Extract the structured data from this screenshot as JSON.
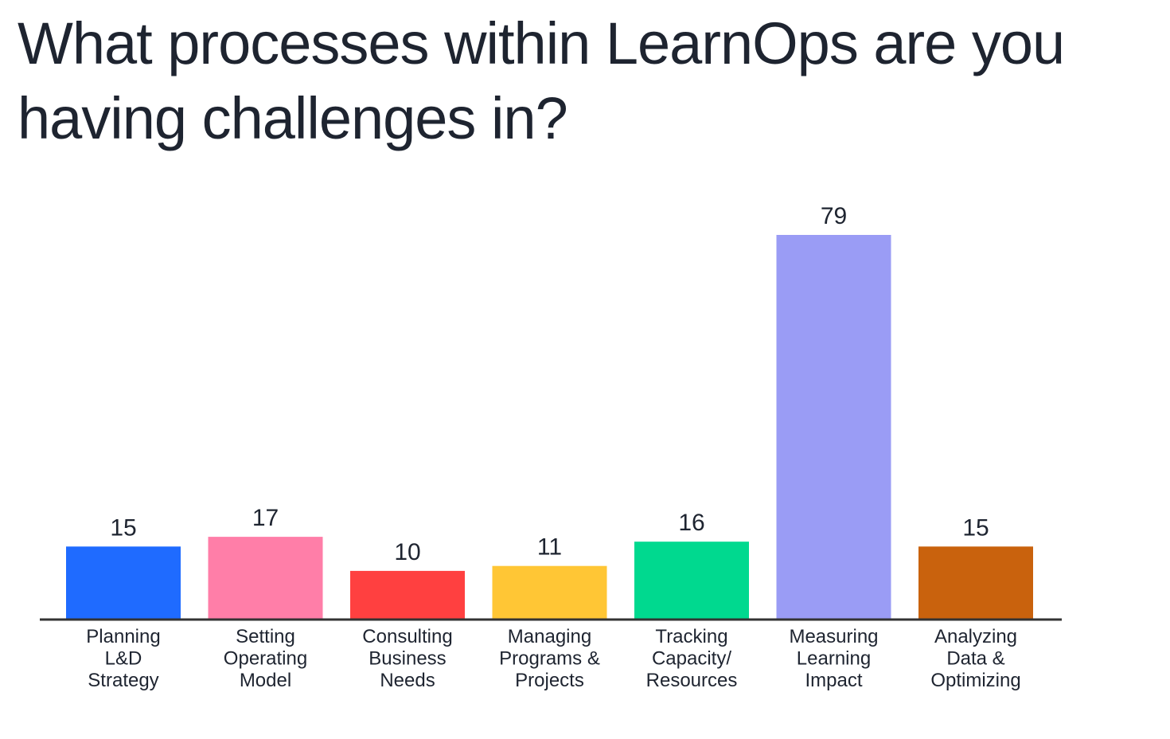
{
  "chart_data": {
    "type": "bar",
    "title": "What processes within LearnOps are you having challenges in?",
    "categories": [
      [
        "Planning",
        "L&D",
        "Strategy"
      ],
      [
        "Setting",
        "Operating",
        "Model"
      ],
      [
        "Consulting",
        "Business",
        "Needs"
      ],
      [
        "Managing",
        "Programs &",
        "Projects"
      ],
      [
        "Tracking",
        "Capacity/",
        "Resources"
      ],
      [
        "Measuring",
        "Learning",
        "Impact"
      ],
      [
        "Analyzing",
        "Data &",
        "Optimizing"
      ]
    ],
    "values": [
      15,
      17,
      10,
      11,
      16,
      79,
      15
    ],
    "colors": [
      "#1f6bff",
      "#ff7ea8",
      "#ff4040",
      "#ffc635",
      "#00d98f",
      "#9a9cf5",
      "#c9620d"
    ],
    "ylim": [
      0,
      79
    ],
    "grid": false,
    "legend": "none",
    "xlabel": "",
    "ylabel": ""
  }
}
